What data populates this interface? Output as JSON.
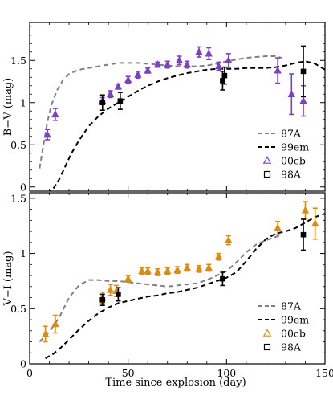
{
  "chart_data": [
    {
      "type": "line",
      "panel": "top",
      "ylabel": "B−V (mag)",
      "xlabel": "",
      "xlim": [
        0,
        150
      ],
      "ylim": [
        -0.05,
        1.95
      ],
      "xticks": [
        0,
        50,
        100,
        150
      ],
      "xtick_labels": [
        "",
        "",
        "",
        ""
      ],
      "yticks": [
        0,
        0.5,
        1,
        1.5
      ],
      "ytick_labels": [
        "0",
        "0.5",
        "1",
        "1.5"
      ],
      "legend_position": "bottom-right",
      "series": [
        {
          "name": "87A",
          "kind": "line",
          "style": "dashed",
          "color": "#808080",
          "x": [
            5,
            7,
            9,
            11,
            14,
            17,
            20,
            25,
            30,
            35,
            40,
            45,
            50,
            55,
            60,
            65,
            70,
            75,
            80,
            85,
            90,
            95,
            100,
            105,
            110,
            115,
            120,
            125,
            128
          ],
          "y": [
            0.22,
            0.5,
            0.77,
            0.97,
            1.15,
            1.27,
            1.34,
            1.39,
            1.41,
            1.43,
            1.45,
            1.47,
            1.47,
            1.47,
            1.46,
            1.45,
            1.44,
            1.43,
            1.43,
            1.43,
            1.44,
            1.46,
            1.49,
            1.51,
            1.53,
            1.54,
            1.55,
            1.55,
            1.53
          ]
        },
        {
          "name": "99em",
          "kind": "line",
          "style": "dashed",
          "color": "#000000",
          "x": [
            9,
            12,
            15,
            18,
            21,
            25,
            30,
            35,
            40,
            45,
            50,
            55,
            60,
            65,
            70,
            75,
            80,
            85,
            90,
            95,
            100,
            105,
            110,
            115,
            120,
            125,
            130,
            135,
            140,
            145,
            150
          ],
          "y": [
            -0.08,
            -0.02,
            0.09,
            0.24,
            0.39,
            0.55,
            0.72,
            0.84,
            0.93,
            1.0,
            1.07,
            1.14,
            1.2,
            1.25,
            1.29,
            1.32,
            1.35,
            1.37,
            1.39,
            1.4,
            1.4,
            1.4,
            1.41,
            1.41,
            1.41,
            1.42,
            1.44,
            1.47,
            1.49,
            1.46,
            1.39
          ]
        },
        {
          "name": "00cb",
          "kind": "points",
          "marker": "triangle",
          "color": "#7d3fc3",
          "x": [
            9,
            13,
            37,
            41,
            45,
            50,
            55,
            60,
            65,
            70,
            76,
            80,
            86,
            91,
            96,
            101,
            126,
            133,
            139
          ],
          "y": [
            0.62,
            0.86,
            1.02,
            1.1,
            1.19,
            1.27,
            1.33,
            1.38,
            1.45,
            1.45,
            1.5,
            1.45,
            1.6,
            1.58,
            1.43,
            1.5,
            1.38,
            1.1,
            1.02
          ],
          "err": [
            0.06,
            0.07,
            0.04,
            0.04,
            0.03,
            0.04,
            0.04,
            0.03,
            0.03,
            0.04,
            0.05,
            0.04,
            0.06,
            0.07,
            0.05,
            0.08,
            0.15,
            0.24,
            0.18
          ]
        },
        {
          "name": "98A",
          "kind": "points",
          "marker": "square",
          "color": "#000000",
          "x": [
            37,
            46,
            98,
            99,
            139
          ],
          "y": [
            1.0,
            1.02,
            1.26,
            1.32,
            1.37
          ],
          "err": [
            0.09,
            0.1,
            0.11,
            0.1,
            0.3
          ]
        }
      ]
    },
    {
      "type": "line",
      "panel": "bottom",
      "ylabel": "V−I (mag)",
      "xlabel": "Time since explosion (day)",
      "xlim": [
        0,
        150
      ],
      "ylim": [
        0,
        1.55
      ],
      "xticks": [
        0,
        50,
        100,
        150
      ],
      "xtick_labels": [
        "0",
        "50",
        "100",
        "150"
      ],
      "yticks": [
        0,
        0.5,
        1,
        1.5
      ],
      "ytick_labels": [
        "0",
        "0.5",
        "1",
        "1.5"
      ],
      "legend_position": "bottom-right",
      "series": [
        {
          "name": "87A",
          "kind": "line",
          "style": "dashed",
          "color": "#808080",
          "x": [
            5,
            10,
            15,
            20,
            25,
            30,
            35,
            40,
            45,
            50,
            55,
            60,
            65,
            70,
            75,
            80,
            85,
            90,
            95,
            100,
            105,
            110,
            115,
            120,
            125,
            128
          ],
          "y": [
            0.2,
            0.29,
            0.42,
            0.6,
            0.71,
            0.76,
            0.76,
            0.75,
            0.75,
            0.74,
            0.73,
            0.72,
            0.71,
            0.7,
            0.71,
            0.72,
            0.73,
            0.76,
            0.8,
            0.84,
            0.92,
            1.01,
            1.08,
            1.12,
            1.15,
            1.17
          ]
        },
        {
          "name": "99em",
          "kind": "line",
          "style": "dashed",
          "color": "#000000",
          "x": [
            8,
            12,
            16,
            20,
            25,
            30,
            35,
            40,
            45,
            50,
            55,
            60,
            65,
            70,
            75,
            80,
            85,
            90,
            95,
            100,
            105,
            110,
            115,
            120,
            125,
            130,
            135,
            140,
            145,
            150
          ],
          "y": [
            0.05,
            0.09,
            0.15,
            0.22,
            0.31,
            0.39,
            0.46,
            0.51,
            0.55,
            0.57,
            0.59,
            0.61,
            0.62,
            0.64,
            0.65,
            0.67,
            0.69,
            0.72,
            0.75,
            0.78,
            0.83,
            0.93,
            1.04,
            1.13,
            1.18,
            1.2,
            1.23,
            1.28,
            1.33,
            1.36
          ]
        },
        {
          "name": "00cb",
          "kind": "points",
          "marker": "triangle",
          "color": "#e08a0b",
          "x": [
            8,
            13,
            37,
            41,
            44,
            50,
            57,
            60,
            65,
            70,
            75,
            80,
            86,
            91,
            96,
            101,
            126,
            140,
            145
          ],
          "y": [
            0.27,
            0.36,
            0.6,
            0.67,
            0.66,
            0.77,
            0.84,
            0.84,
            0.83,
            0.84,
            0.85,
            0.87,
            0.86,
            0.87,
            0.97,
            1.12,
            1.23,
            1.39,
            1.27
          ],
          "err": [
            0.07,
            0.08,
            0.05,
            0.05,
            0.05,
            0.03,
            0.03,
            0.03,
            0.03,
            0.03,
            0.03,
            0.03,
            0.03,
            0.03,
            0.03,
            0.04,
            0.06,
            0.08,
            0.14
          ]
        },
        {
          "name": "98A",
          "kind": "points",
          "marker": "square",
          "color": "#000000",
          "x": [
            37,
            45,
            98,
            139
          ],
          "y": [
            0.58,
            0.63,
            0.77,
            1.17
          ],
          "err": [
            0.05,
            0.06,
            0.06,
            0.14
          ]
        }
      ]
    }
  ]
}
